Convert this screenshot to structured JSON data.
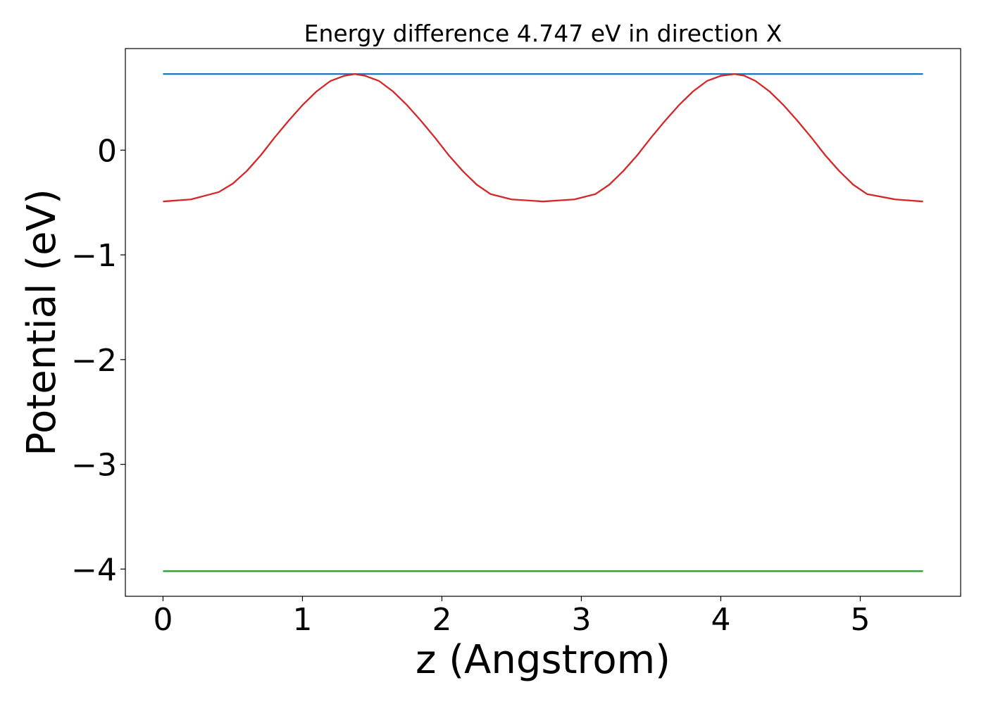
{
  "chart_data": {
    "type": "line",
    "title": "Energy difference 4.747 eV in direction X",
    "xlabel": "z (Angstrom)",
    "ylabel": "Potential (eV)",
    "xlim": [
      -0.27,
      5.72
    ],
    "ylim": [
      -4.26,
      0.97
    ],
    "xticks": [
      0,
      1,
      2,
      3,
      4,
      5
    ],
    "xtick_labels": [
      "0",
      "1",
      "2",
      "3",
      "4",
      "5"
    ],
    "yticks": [
      0,
      -1,
      -2,
      -3,
      -4
    ],
    "ytick_labels": [
      "0",
      "−1",
      "−2",
      "−3",
      "−4"
    ],
    "grid": false,
    "legend": "none",
    "series": [
      {
        "color": "#1f77b4",
        "x": [
          0,
          5.45
        ],
        "y": [
          0.727,
          0.727
        ]
      },
      {
        "color": "#d62728",
        "x": [
          0.0,
          0.2,
          0.4,
          0.5,
          0.6,
          0.7,
          0.8,
          0.9,
          1.0,
          1.1,
          1.2,
          1.3,
          1.375,
          1.45,
          1.55,
          1.65,
          1.75,
          1.85,
          1.95,
          2.05,
          2.15,
          2.25,
          2.35,
          2.5,
          2.725,
          2.95,
          3.1,
          3.2,
          3.3,
          3.4,
          3.5,
          3.6,
          3.7,
          3.8,
          3.9,
          4.0,
          4.1,
          4.17,
          4.25,
          4.35,
          4.45,
          4.55,
          4.65,
          4.75,
          4.85,
          4.95,
          5.05,
          5.25,
          5.45
        ],
        "y": [
          -0.49,
          -0.47,
          -0.4,
          -0.32,
          -0.2,
          -0.05,
          0.12,
          0.28,
          0.43,
          0.56,
          0.66,
          0.71,
          0.727,
          0.71,
          0.66,
          0.56,
          0.43,
          0.28,
          0.12,
          -0.05,
          -0.2,
          -0.33,
          -0.42,
          -0.47,
          -0.49,
          -0.47,
          -0.42,
          -0.33,
          -0.2,
          -0.05,
          0.12,
          0.28,
          0.43,
          0.56,
          0.66,
          0.71,
          0.727,
          0.71,
          0.66,
          0.56,
          0.43,
          0.28,
          0.12,
          -0.05,
          -0.2,
          -0.33,
          -0.42,
          -0.47,
          -0.49
        ]
      },
      {
        "color": "#2ca02c",
        "x": [
          0,
          5.45
        ],
        "y": [
          -4.02,
          -4.02
        ]
      }
    ]
  }
}
